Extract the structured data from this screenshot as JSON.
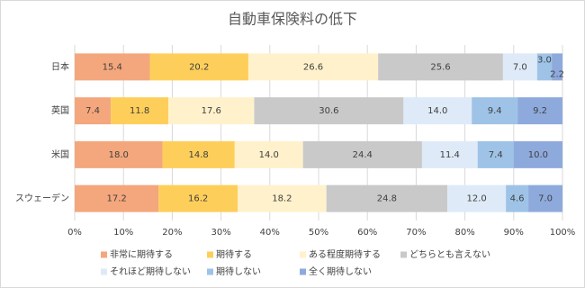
{
  "chart_data": {
    "type": "stacked_barh",
    "title": "自動車保険料の低下",
    "categories": [
      "日本",
      "英国",
      "米国",
      "スウェーデン"
    ],
    "series": [
      {
        "name": "非常に期待する",
        "color": "#f4a77c",
        "values": [
          15.4,
          7.4,
          18.0,
          17.2
        ],
        "value_labels": [
          "15.4",
          "7.4",
          "18.0",
          "17.2"
        ]
      },
      {
        "name": "期待する",
        "color": "#fdcf5a",
        "values": [
          20.2,
          11.8,
          14.8,
          16.2
        ],
        "value_labels": [
          "20.2",
          "11.8",
          "14.8",
          "16.2"
        ]
      },
      {
        "name": "ある程度期待する",
        "color": "#fff1cb",
        "values": [
          26.6,
          17.6,
          14.0,
          18.2
        ],
        "value_labels": [
          "26.6",
          "17.6",
          "14.0",
          "18.2"
        ]
      },
      {
        "name": "どちらとも言えない",
        "color": "#c9c9c9",
        "values": [
          25.6,
          30.6,
          24.4,
          24.8
        ],
        "value_labels": [
          "25.6",
          "30.6",
          "24.4",
          "24.8"
        ]
      },
      {
        "name": "それほど期待しない",
        "color": "#deeaf7",
        "values": [
          7.0,
          14.0,
          11.4,
          12.0
        ],
        "value_labels": [
          "7.0",
          "14.0",
          "11.4",
          "12.0"
        ]
      },
      {
        "name": "期待しない",
        "color": "#9ec3e7",
        "values": [
          3.0,
          9.4,
          7.4,
          4.6
        ],
        "value_labels": [
          "3.0",
          "9.4",
          "7.4",
          "4.6"
        ]
      },
      {
        "name": "全く期待しない",
        "color": "#8eaadc",
        "values": [
          2.2,
          9.2,
          10.0,
          7.0
        ],
        "value_labels": [
          "2.2",
          "9.2",
          "10.0",
          "7.0"
        ]
      }
    ],
    "xlim": [
      0,
      100
    ],
    "xticks": [
      {
        "value": 0,
        "label": "0%"
      },
      {
        "value": 10,
        "label": "10%"
      },
      {
        "value": 20,
        "label": "20%"
      },
      {
        "value": 30,
        "label": "30%"
      },
      {
        "value": 40,
        "label": "40%"
      },
      {
        "value": 50,
        "label": "50%"
      },
      {
        "value": 60,
        "label": "60%"
      },
      {
        "value": 70,
        "label": "70%"
      },
      {
        "value": 80,
        "label": "80%"
      },
      {
        "value": 90,
        "label": "90%"
      },
      {
        "value": 100,
        "label": "100%"
      }
    ],
    "grid": true,
    "legend": "bottom"
  }
}
